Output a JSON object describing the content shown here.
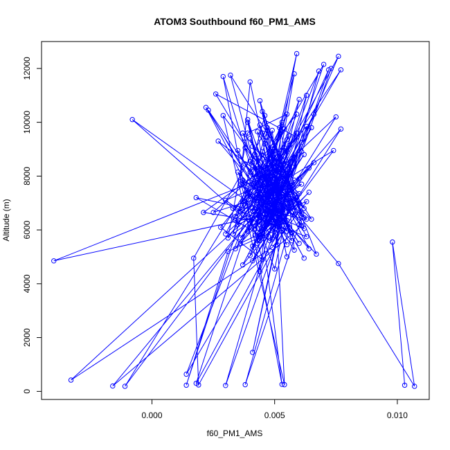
{
  "chart_data": {
    "type": "line",
    "title": "ATOM3 Southbound f60_PM1_AMS",
    "xlabel": "f60_PM1_AMS",
    "ylabel": "Altitude (m)",
    "xlim": [
      -0.0045,
      0.0113
    ],
    "ylim": [
      -300,
      13000
    ],
    "x_ticks": [
      0.0,
      0.005,
      0.01
    ],
    "x_tick_labels": [
      "0.000",
      "0.005",
      "0.010"
    ],
    "y_ticks": [
      0,
      2000,
      4000,
      6000,
      8000,
      10000,
      12000
    ],
    "y_tick_labels": [
      "0",
      "2000",
      "4000",
      "6000",
      "8000",
      "10000",
      "12000"
    ],
    "marker": "open-circle",
    "line": true,
    "series_color": "#0000ff",
    "series": [
      {
        "points": [
          [
            0.0103,
            230
          ],
          [
            0.0098,
            5550
          ],
          [
            0.0107,
            190
          ],
          [
            0.0076,
            4750
          ],
          [
            0.0057,
            6850
          ],
          [
            0.0018,
            300
          ],
          [
            0.0052,
            9800
          ],
          [
            0.006,
            6950
          ],
          [
            0.0027,
            9300
          ],
          [
            0.0064,
            5300
          ],
          [
            0.0047,
            8300
          ],
          [
            0.0055,
            5000
          ],
          [
            0.004,
            11500
          ],
          [
            0.0036,
            7800
          ],
          [
            0.0045,
            4900
          ],
          [
            0.0028,
            6100
          ],
          [
            0.0051,
            8700
          ],
          [
            0.0059,
            12550
          ],
          [
            0.0042,
            5800
          ],
          [
            0.0049,
            9700
          ],
          [
            0.0053,
            6500
          ],
          [
            0.0037,
            4700
          ],
          [
            0.0061,
            8900
          ],
          [
            0.0047,
            6300
          ],
          [
            0.0029,
            11700
          ],
          [
            0.0053,
            260
          ],
          [
            0.0043,
            7300
          ],
          [
            0.0031,
            5700
          ],
          [
            0.0039,
            9600
          ],
          [
            0.0055,
            10300
          ],
          [
            0.0041,
            6700
          ],
          [
            0.005,
            4550
          ],
          [
            0.0057,
            7500
          ],
          [
            0.0045,
            9600
          ],
          [
            0.0056,
            6100
          ],
          [
            0.0038,
            250
          ],
          [
            0.006,
            6200
          ],
          [
            0.0044,
            10800
          ],
          [
            0.0052,
            7100
          ],
          [
            0.0034,
            5300
          ],
          [
            0.0065,
            9800
          ],
          [
            0.0046,
            6400
          ],
          [
            0.0022,
            10550
          ],
          [
            0.0058,
            5250
          ],
          [
            0.0054,
            8600
          ],
          [
            0.004,
            7250
          ],
          [
            0.0033,
            6800
          ],
          [
            0.0063,
            5750
          ],
          [
            0.0049,
            8150
          ],
          [
            0.0044,
            4450
          ],
          [
            0.0073,
            12000
          ],
          [
            0.0052,
            6550
          ],
          [
            0.0039,
            10100
          ],
          [
            0.0051,
            5450
          ],
          [
            0.0048,
            7700
          ],
          [
            0.0026,
            11050
          ],
          [
            0.0059,
            9450
          ],
          [
            0.0043,
            6550
          ],
          [
            0.0035,
            8150
          ],
          [
            0.0067,
            5100
          ],
          [
            0.005,
            9050
          ],
          [
            0.0055,
            7900
          ],
          [
            0.0041,
            4850
          ],
          [
            0.0053,
            6700
          ],
          [
            0.0046,
            10250
          ],
          [
            0.0033,
            5850
          ],
          [
            0.0061,
            7700
          ],
          [
            0.0025,
            6650
          ],
          [
            0.0054,
            9050
          ],
          [
            0.0042,
            6050
          ],
          [
            0.0077,
            9750
          ],
          [
            0.0049,
            5700
          ],
          [
            0.0053,
            10000
          ],
          [
            0.0044,
            6200
          ],
          [
            0.003,
            7100
          ],
          [
            0.0056,
            8100
          ],
          [
            0.0045,
            6100
          ],
          [
            0.0063,
            11000
          ],
          [
            0.0051,
            6000
          ],
          [
            0.0031,
            5200
          ],
          [
            0.0014,
            230
          ],
          [
            0.0047,
            9450
          ],
          [
            0.0052,
            6950
          ],
          [
            0.0038,
            8450
          ],
          [
            0.0057,
            5900
          ],
          [
            0.0043,
            6450
          ],
          [
            0.0058,
            11800
          ],
          [
            0.0049,
            7050
          ],
          [
            0.004,
            9400
          ],
          [
            0.0054,
            6300
          ],
          [
            0.0036,
            5500
          ],
          [
            0.0062,
            8800
          ],
          [
            0.0047,
            6700
          ],
          [
            0.0023,
            10450
          ],
          [
            0.006,
            5500
          ],
          [
            0.0044,
            7800
          ],
          [
            0.0052,
            6350
          ],
          [
            0.0068,
            11900
          ],
          [
            0.005,
            7600
          ],
          [
            0.0034,
            6500
          ],
          [
            0.0056,
            9500
          ],
          [
            0.0041,
            6800
          ],
          [
            0.0063,
            6400
          ],
          [
            0.0046,
            8000
          ],
          [
            0.0055,
            5950
          ],
          [
            0.0039,
            7350
          ],
          [
            0.007,
            12150
          ],
          [
            0.0049,
            6450
          ],
          [
            0.0043,
            9650
          ],
          [
            0.0058,
            7150
          ],
          [
            0.0035,
            6200
          ],
          [
            0.0052,
            8400
          ],
          [
            0.0061,
            6600
          ],
          [
            0.0045,
            10400
          ],
          [
            0.0053,
            7300
          ],
          [
            0.0029,
            10250
          ],
          [
            0.0054,
            250
          ],
          [
            0.005,
            7900
          ],
          [
            0.0042,
            6150
          ],
          [
            0.006,
            10850
          ],
          [
            0.0048,
            6250
          ],
          [
            0.0021,
            6650
          ],
          [
            0.0055,
            8900
          ],
          [
            0.0044,
            5600
          ],
          [
            0.0064,
            7400
          ],
          [
            0.0051,
            6150
          ],
          [
            0.0037,
            9600
          ],
          [
            0.0057,
            7500
          ],
          [
            0.0041,
            5400
          ],
          [
            0.0066,
            8500
          ],
          [
            0.0046,
            6600
          ],
          [
            -0.0008,
            10100
          ],
          [
            0.0048,
            5600
          ],
          [
            0.0018,
            7200
          ],
          [
            0.0054,
            6500
          ],
          [
            0.004,
            8150
          ],
          [
            0.0059,
            10300
          ],
          [
            0.0045,
            7100
          ],
          [
            0.003,
            5850
          ],
          [
            0.0053,
            9900
          ],
          [
            0.0043,
            7000
          ],
          [
            0.0076,
            12450
          ],
          [
            0.005,
            6900
          ],
          [
            0.0036,
            5700
          ],
          [
            0.0056,
            8300
          ],
          [
            0.0032,
            11750
          ],
          [
            0.0047,
            6600
          ],
          [
            0.0061,
            9250
          ],
          [
            0.0044,
            5800
          ],
          [
            0.0058,
            7850
          ],
          [
            0.0049,
            6050
          ],
          [
            0.0041,
            8500
          ],
          [
            0.0062,
            4950
          ],
          [
            0.0047,
            7450
          ],
          [
            0.0074,
            8950
          ],
          [
            0.0052,
            6250
          ],
          [
            0.0038,
            9050
          ],
          [
            0.0056,
            7000
          ],
          [
            0.0043,
            5500
          ],
          [
            0.0075,
            10200
          ],
          [
            0.005,
            8050
          ],
          [
            0.0034,
            6350
          ],
          [
            0.0059,
            7200
          ],
          [
            0.0045,
            5900
          ],
          [
            0.0066,
            10300
          ],
          [
            0.0048,
            7150
          ],
          [
            0.004,
            5050
          ],
          [
            0.0057,
            8650
          ],
          [
            0.0046,
            6800
          ],
          [
            0.0072,
            11950
          ],
          [
            0.0051,
            6400
          ],
          [
            0.0035,
            8950
          ],
          [
            0.0055,
            5450
          ],
          [
            0.0042,
            7600
          ],
          [
            0.0063,
            9850
          ],
          [
            0.0049,
            5650
          ],
          [
            0.0037,
            7850
          ],
          [
            0.0058,
            6550
          ],
          [
            0.0044,
            9900
          ],
          [
            0.0052,
            7200
          ],
          [
            0.003,
            220
          ],
          [
            0.0053,
            6150
          ],
          [
            0.0041,
            9100
          ],
          [
            0.006,
            7350
          ],
          [
            0.0043,
            5900
          ],
          [
            0.0064,
            8300
          ],
          [
            0.0047,
            6950
          ],
          [
            0.0039,
            10000
          ],
          [
            0.0054,
            6500
          ],
          [
            0.0036,
            7700
          ],
          [
            0.0057,
            5600
          ],
          [
            0.0045,
            8900
          ],
          [
            0.0062,
            6800
          ],
          [
            0.0048,
            8000
          ],
          [
            0.004,
            6250
          ],
          [
            0.0056,
            9150
          ],
          [
            0.0044,
            7650
          ],
          [
            0.0061,
            6300
          ],
          [
            0.005,
            8450
          ],
          [
            0.0039,
            5950
          ],
          [
            0.0077,
            11950
          ],
          [
            0.0046,
            7700
          ],
          [
            0.0055,
            6850
          ],
          [
            0.0042,
            8800
          ],
          [
            0.0058,
            7300
          ],
          [
            0.0047,
            9700
          ],
          [
            0.0036,
            6700
          ],
          [
            0.0053,
            8250
          ],
          [
            0.0044,
            6450
          ],
          [
            0.0063,
            7050
          ],
          [
            0.0049,
            5350
          ],
          [
            -0.0033,
            420
          ],
          [
            0.0051,
            7450
          ],
          [
            0.004,
            8550
          ],
          [
            0.0065,
            6400
          ],
          [
            0.0046,
            9200
          ],
          [
            0.0054,
            6900
          ],
          [
            0.0041,
            1450
          ],
          [
            0.0057,
            8350
          ],
          [
            0.0048,
            6300
          ],
          [
            0.006,
            7900
          ],
          [
            0.0043,
            5600
          ],
          [
            0.0055,
            9350
          ],
          [
            0.0037,
            7050
          ],
          [
            0.0062,
            6050
          ],
          [
            0.005,
            8650
          ],
          [
            0.0045,
            6850
          ],
          [
            0.0059,
            9600
          ],
          [
            0.0041,
            7250
          ],
          [
            0.0053,
            6650
          ],
          [
            0.0014,
            640
          ],
          [
            0.0049,
            9000
          ],
          [
            0.0056,
            7050
          ],
          [
            0.0044,
            8050
          ],
          [
            0.0061,
            6150
          ],
          [
            -0.0016,
            200
          ],
          [
            0.0052,
            7700
          ],
          [
            0.0047,
            6200
          ],
          [
            0.0058,
            8700
          ],
          [
            0.0043,
            7850
          ],
          [
            -0.004,
            4850
          ],
          [
            0.0056,
            6750
          ],
          [
            0.0048,
            8800
          ],
          [
            0.0038,
            6900
          ],
          [
            0.0054,
            9750
          ],
          [
            -0.0011,
            190
          ],
          [
            0.005,
            7600
          ],
          [
            0.0055,
            6350
          ],
          [
            0.0042,
            8300
          ],
          [
            0.006,
            7000
          ],
          [
            0.0019,
            240
          ],
          [
            0.0017,
            4950
          ],
          [
            0.0047,
            9800
          ],
          [
            0.0062,
            6450
          ],
          [
            0.0045,
            7950
          ]
        ]
      }
    ]
  }
}
